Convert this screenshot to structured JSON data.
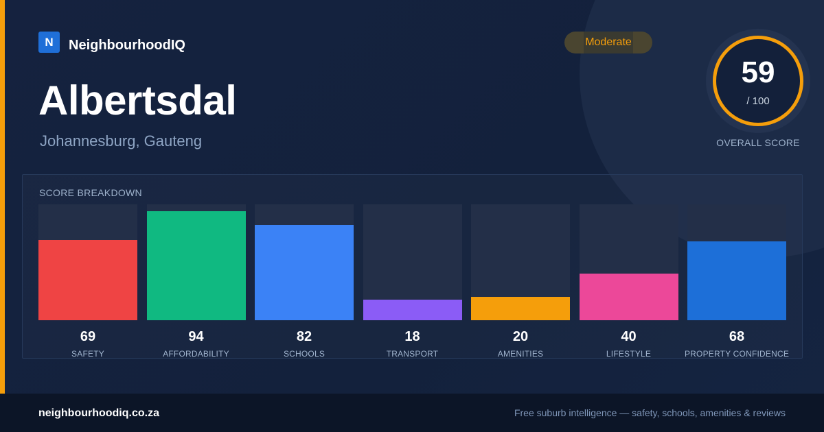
{
  "brand": {
    "logo_letter": "N",
    "name": "NeighbourhoodIQ"
  },
  "suburb": {
    "name": "Albertsdal",
    "location": "Johannesburg, Gauteng"
  },
  "rating": {
    "label": "Moderate",
    "color": "#f59e0b"
  },
  "overall": {
    "score": "59",
    "max": "/ 100",
    "caption": "OVERALL SCORE"
  },
  "breakdown": {
    "title": "SCORE BREAKDOWN"
  },
  "chart_data": {
    "type": "bar",
    "title": "SCORE BREAKDOWN",
    "ylim": [
      0,
      100
    ],
    "grid": false,
    "categories": [
      "SAFETY",
      "AFFORDABILITY",
      "SCHOOLS",
      "TRANSPORT",
      "AMENITIES",
      "LIFESTYLE",
      "PROPERTY CONFIDENCE"
    ],
    "values": [
      69,
      94,
      82,
      18,
      20,
      40,
      68
    ],
    "colors": [
      "#ef4444",
      "#10b981",
      "#3b82f6",
      "#8b5cf6",
      "#f59e0b",
      "#ec4899",
      "#1d6fd8"
    ]
  },
  "footer": {
    "domain": "neighbourhoodiq.co.za",
    "tagline": "Free suburb intelligence — safety, schools, amenities & reviews"
  }
}
